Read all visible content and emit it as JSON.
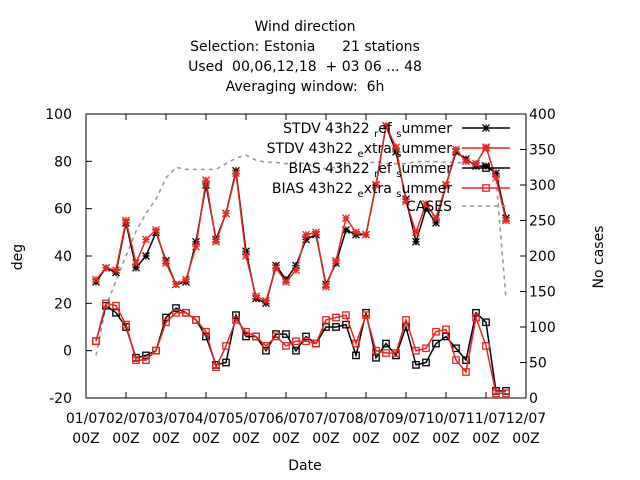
{
  "chart_data": {
    "type": "line",
    "title_lines": [
      "Wind direction",
      "Selection: Estonia      21 stations",
      "Used  00,06,12,18  + 03 06 ... 48",
      "Averaging window:  6h"
    ],
    "xlabel": "Date",
    "ylabel": "deg",
    "y2label": "No cases",
    "x_ticks": [
      {
        "x": 0,
        "label1": "01/07",
        "label2": "00Z"
      },
      {
        "x": 1,
        "label1": "02/07",
        "label2": "00Z"
      },
      {
        "x": 2,
        "label1": "03/07",
        "label2": "00Z"
      },
      {
        "x": 3,
        "label1": "04/07",
        "label2": "00Z"
      },
      {
        "x": 4,
        "label1": "05/07",
        "label2": "00Z"
      },
      {
        "x": 5,
        "label1": "06/07",
        "label2": "00Z"
      },
      {
        "x": 6,
        "label1": "07/07",
        "label2": "00Z"
      },
      {
        "x": 7,
        "label1": "08/07",
        "label2": "00Z"
      },
      {
        "x": 8,
        "label1": "09/07",
        "label2": "00Z"
      },
      {
        "x": 9,
        "label1": "10/07",
        "label2": "00Z"
      },
      {
        "x": 10,
        "label1": "11/07",
        "label2": "00Z"
      },
      {
        "x": 11,
        "label1": "12/07",
        "label2": "00Z"
      }
    ],
    "xlim": [
      0,
      11
    ],
    "ylim": [
      -20,
      100
    ],
    "y_ticks": [
      -20,
      0,
      20,
      40,
      60,
      80,
      100
    ],
    "y2lim": [
      0,
      400
    ],
    "y2_ticks": [
      0,
      50,
      100,
      150,
      200,
      250,
      300,
      350,
      400
    ],
    "legend_position": "top-right",
    "grid": false,
    "x_unit": "days since 01/07 00Z",
    "series": [
      {
        "name": "STDV 43h22_ref_summer",
        "legend_label": "STDV 43h22",
        "legend_sub": "r",
        "legend_mid": "ef",
        "legend_sub2": "s",
        "legend_tail": "ummer",
        "axis": "y1",
        "color": "#000000",
        "marker": "star",
        "dashed": false,
        "x": [
          0.25,
          0.5,
          0.75,
          1.0,
          1.25,
          1.5,
          1.75,
          2.0,
          2.25,
          2.5,
          2.75,
          3.0,
          3.25,
          3.5,
          3.75,
          4.0,
          4.25,
          4.5,
          4.75,
          5.0,
          5.25,
          5.5,
          5.75,
          6.0,
          6.25,
          6.5,
          6.75,
          7.0,
          7.25,
          7.5,
          7.75,
          8.0,
          8.25,
          8.5,
          8.75,
          9.0,
          9.25,
          9.5,
          9.75,
          10.0,
          10.25,
          10.5
        ],
        "y": [
          29,
          35,
          33,
          54,
          35,
          40,
          50,
          38,
          28,
          29,
          46,
          70,
          47,
          58,
          76,
          42,
          22,
          20,
          36,
          30,
          36,
          47,
          49,
          28,
          37,
          51,
          49,
          49,
          70,
          95,
          84,
          64,
          46,
          60,
          54,
          70,
          84,
          81,
          78,
          78,
          75,
          56
        ]
      },
      {
        "name": "STDV 43h22_extra_summer",
        "legend_label": "STDV 43h22",
        "legend_sub": "e",
        "legend_mid": "xtra",
        "legend_sub2": "s",
        "legend_tail": "ummer",
        "axis": "y1",
        "color": "#e8251f",
        "marker": "cross",
        "dashed": false,
        "x": [
          0.25,
          0.5,
          0.75,
          1.0,
          1.25,
          1.5,
          1.75,
          2.0,
          2.25,
          2.5,
          2.75,
          3.0,
          3.25,
          3.5,
          3.75,
          4.0,
          4.25,
          4.5,
          4.75,
          5.0,
          5.25,
          5.5,
          5.75,
          6.0,
          6.25,
          6.5,
          6.75,
          7.0,
          7.25,
          7.5,
          7.75,
          8.0,
          8.25,
          8.5,
          8.75,
          9.0,
          9.25,
          9.5,
          9.75,
          10.0,
          10.25,
          10.5
        ],
        "y": [
          30,
          35,
          34,
          55,
          37,
          47,
          51,
          37,
          28,
          30,
          44,
          72,
          46,
          58,
          75,
          40,
          23,
          21,
          35,
          29,
          34,
          49,
          50,
          27,
          38,
          56,
          50,
          49,
          70,
          95,
          86,
          63,
          50,
          62,
          56,
          70,
          85,
          80,
          79,
          86,
          73,
          55
        ]
      },
      {
        "name": "BIAS 43h22_ref_summer",
        "legend_label": "BIAS 43h22",
        "legend_sub": "r",
        "legend_mid": "ef",
        "legend_sub2": "s",
        "legend_tail": "ummer",
        "axis": "y1",
        "color": "#000000",
        "marker": "square",
        "dashed": false,
        "x": [
          0.25,
          0.5,
          0.75,
          1.0,
          1.25,
          1.5,
          1.75,
          2.0,
          2.25,
          2.5,
          2.75,
          3.0,
          3.25,
          3.5,
          3.75,
          4.0,
          4.25,
          4.5,
          4.75,
          5.0,
          5.25,
          5.5,
          5.75,
          6.0,
          6.25,
          6.5,
          6.75,
          7.0,
          7.25,
          7.5,
          7.75,
          8.0,
          8.25,
          8.5,
          8.75,
          9.0,
          9.25,
          9.5,
          9.75,
          10.0,
          10.25,
          10.5
        ],
        "y": [
          4,
          19,
          16,
          10,
          -3,
          -2,
          0,
          14,
          18,
          16,
          13,
          6,
          -6,
          -5,
          15,
          6,
          6,
          0,
          7,
          7,
          0,
          6,
          3,
          10,
          10,
          11,
          -2,
          16,
          -3,
          3,
          -2,
          10,
          -6,
          -5,
          3,
          6,
          1,
          -4,
          16,
          12,
          -17,
          -17
        ]
      },
      {
        "name": "BIAS 43h22_extra_summer",
        "legend_label": "BIAS 43h22",
        "legend_sub": "e",
        "legend_mid": "xtra",
        "legend_sub2": "s",
        "legend_tail": "ummer",
        "axis": "y1",
        "color": "#e8251f",
        "marker": "square",
        "dashed": false,
        "x": [
          0.25,
          0.5,
          0.75,
          1.0,
          1.25,
          1.5,
          1.75,
          2.0,
          2.25,
          2.5,
          2.75,
          3.0,
          3.25,
          3.5,
          3.75,
          4.0,
          4.25,
          4.5,
          4.75,
          5.0,
          5.25,
          5.5,
          5.75,
          6.0,
          6.25,
          6.5,
          6.75,
          7.0,
          7.25,
          7.5,
          7.75,
          8.0,
          8.25,
          8.5,
          8.75,
          9.0,
          9.25,
          9.5,
          9.75,
          10.0,
          10.25,
          10.5
        ],
        "y": [
          4,
          20,
          19,
          11,
          -4,
          -4,
          0,
          12,
          16,
          16,
          13,
          8,
          -7,
          2,
          13,
          8,
          6,
          2,
          6,
          2,
          4,
          4,
          3,
          13,
          14,
          15,
          3,
          15,
          0,
          -1,
          -1,
          13,
          0,
          1,
          8,
          9,
          -4,
          -9,
          14,
          2,
          -18,
          -18
        ]
      },
      {
        "name": "CASES",
        "legend_label": "CASES",
        "axis": "y2",
        "color": "#999999",
        "marker": "none",
        "dashed": true,
        "x": [
          0.25,
          0.5,
          0.75,
          1.0,
          1.25,
          1.5,
          1.75,
          2.0,
          2.25,
          2.5,
          2.75,
          3.0,
          3.25,
          3.5,
          3.75,
          4.0,
          4.25,
          4.5,
          4.75,
          5.0,
          5.25,
          5.5,
          5.75,
          6.0,
          6.25,
          6.5,
          6.75,
          7.0,
          7.25,
          7.5,
          7.75,
          8.0,
          8.25,
          8.5,
          8.75,
          9.0,
          9.25,
          9.5,
          9.75,
          10.0,
          10.25,
          10.5
        ],
        "y": [
          60,
          130,
          165,
          200,
          235,
          260,
          280,
          310,
          325,
          322,
          322,
          322,
          322,
          330,
          338,
          342,
          335,
          332,
          332,
          330,
          332,
          330,
          325,
          323,
          325,
          330,
          330,
          330,
          333,
          330,
          330,
          330,
          333,
          333,
          333,
          332,
          332,
          330,
          333,
          330,
          310,
          140
        ]
      }
    ]
  }
}
